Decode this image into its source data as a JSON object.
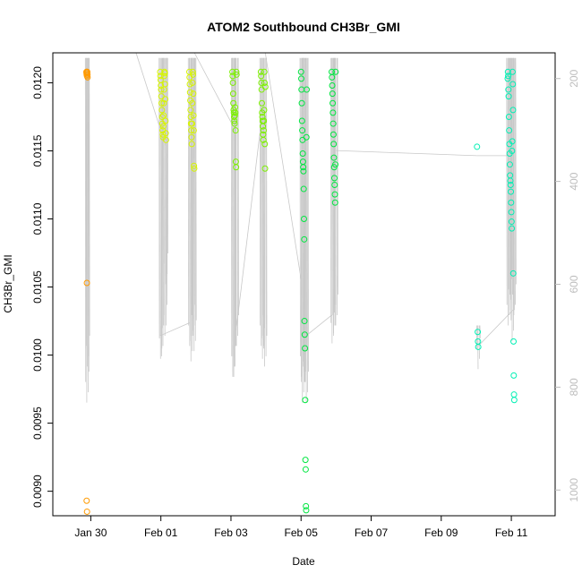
{
  "chart_data": {
    "type": "scatter",
    "title": "ATOM2 Southbound CH3Br_GMI",
    "xlabel": "Date",
    "ylabel": "CH3Br_GMI",
    "xlim": [
      "2017-01-28T22:00",
      "2017-02-12T06:00"
    ],
    "ylim": [
      0.00882,
      0.01222
    ],
    "y2lim": [
      1050,
      150
    ],
    "x_ticks": [
      {
        "label": "Jan 30",
        "date": "2017-01-30"
      },
      {
        "label": "Feb 01",
        "date": "2017-02-01"
      },
      {
        "label": "Feb 03",
        "date": "2017-02-03"
      },
      {
        "label": "Feb 05",
        "date": "2017-02-05"
      },
      {
        "label": "Feb 07",
        "date": "2017-02-07"
      },
      {
        "label": "Feb 09",
        "date": "2017-02-09"
      },
      {
        "label": "Feb 11",
        "date": "2017-02-11"
      }
    ],
    "y_ticks": [
      {
        "label": "0.0090",
        "value": 0.009
      },
      {
        "label": "0.0095",
        "value": 0.0095
      },
      {
        "label": "0.0100",
        "value": 0.01
      },
      {
        "label": "0.0105",
        "value": 0.0105
      },
      {
        "label": "0.0110",
        "value": 0.011
      },
      {
        "label": "0.0115",
        "value": 0.0115
      },
      {
        "label": "0.0120",
        "value": 0.012
      }
    ],
    "y2_ticks": [
      {
        "label": "200",
        "value": 200
      },
      {
        "label": "400",
        "value": 400
      },
      {
        "label": "600",
        "value": 600
      },
      {
        "label": "800",
        "value": 800
      },
      {
        "label": "1000",
        "value": 1000
      }
    ],
    "pressure_trace_color": "#c8c8c8",
    "flights": [
      {
        "color": "#ff9a00",
        "hours": [
          45.0,
          46.0
        ],
        "profiles": [
          {
            "t": 45.0,
            "p_top": 160,
            "p_bottom": 830
          },
          {
            "t": 45.6,
            "p_top": 160,
            "p_bottom": 720
          }
        ],
        "points": [
          {
            "x": "2017-01-29T21:00",
            "y": 0.01208
          },
          {
            "x": "2017-01-29T21:06",
            "y": 0.01207
          },
          {
            "x": "2017-01-29T21:12",
            "y": 0.01206
          },
          {
            "x": "2017-01-29T21:18",
            "y": 0.01208
          },
          {
            "x": "2017-01-29T21:24",
            "y": 0.01205
          },
          {
            "x": "2017-01-29T21:30",
            "y": 0.01207
          },
          {
            "x": "2017-01-29T21:36",
            "y": 0.01208
          },
          {
            "x": "2017-01-29T21:42",
            "y": 0.01206
          },
          {
            "x": "2017-01-29T21:48",
            "y": 0.01204
          },
          {
            "x": "2017-01-29T21:20",
            "y": 0.01053
          },
          {
            "x": "2017-01-29T21:10",
            "y": 0.00893
          },
          {
            "x": "2017-01-29T21:25",
            "y": 0.00885
          }
        ]
      },
      {
        "color": "#d7f500",
        "hours": [],
        "points": [
          {
            "x": "2017-01-31T23:30",
            "y": 0.01208
          },
          {
            "x": "2017-01-31T23:40",
            "y": 0.01205
          },
          {
            "x": "2017-01-31T23:50",
            "y": 0.01202
          },
          {
            "x": "2017-02-01T00:00",
            "y": 0.01198
          },
          {
            "x": "2017-02-01T00:10",
            "y": 0.01195
          },
          {
            "x": "2017-02-01T00:20",
            "y": 0.0119
          },
          {
            "x": "2017-02-01T00:30",
            "y": 0.01185
          },
          {
            "x": "2017-02-01T00:40",
            "y": 0.0118
          },
          {
            "x": "2017-02-01T00:50",
            "y": 0.01175
          },
          {
            "x": "2017-02-01T01:00",
            "y": 0.0117
          },
          {
            "x": "2017-02-01T01:10",
            "y": 0.01165
          },
          {
            "x": "2017-02-01T01:20",
            "y": 0.01162
          },
          {
            "x": "2017-02-01T01:30",
            "y": 0.0116
          },
          {
            "x": "2017-02-01T01:40",
            "y": 0.01168
          },
          {
            "x": "2017-02-01T01:50",
            "y": 0.01176
          },
          {
            "x": "2017-02-01T02:00",
            "y": 0.01185
          },
          {
            "x": "2017-02-01T02:10",
            "y": 0.01195
          },
          {
            "x": "2017-02-01T02:20",
            "y": 0.01205
          },
          {
            "x": "2017-02-01T02:30",
            "y": 0.01208
          },
          {
            "x": "2017-02-01T02:40",
            "y": 0.01207
          },
          {
            "x": "2017-02-01T02:50",
            "y": 0.01199
          },
          {
            "x": "2017-02-01T03:00",
            "y": 0.01188
          },
          {
            "x": "2017-02-01T03:10",
            "y": 0.01172
          },
          {
            "x": "2017-02-01T03:20",
            "y": 0.01163
          },
          {
            "x": "2017-02-01T03:30",
            "y": 0.01158
          },
          {
            "x": "2017-02-01T19:30",
            "y": 0.01208
          },
          {
            "x": "2017-02-01T19:40",
            "y": 0.01204
          },
          {
            "x": "2017-02-01T19:50",
            "y": 0.01199
          },
          {
            "x": "2017-02-01T20:00",
            "y": 0.01193
          },
          {
            "x": "2017-02-01T20:10",
            "y": 0.01187
          },
          {
            "x": "2017-02-01T20:20",
            "y": 0.0118
          },
          {
            "x": "2017-02-01T20:30",
            "y": 0.01175
          },
          {
            "x": "2017-02-01T20:40",
            "y": 0.0117
          },
          {
            "x": "2017-02-01T20:50",
            "y": 0.01165
          },
          {
            "x": "2017-02-01T21:00",
            "y": 0.0116
          },
          {
            "x": "2017-02-01T21:10",
            "y": 0.01155
          },
          {
            "x": "2017-02-01T21:20",
            "y": 0.0117
          },
          {
            "x": "2017-02-01T21:30",
            "y": 0.01185
          },
          {
            "x": "2017-02-01T21:40",
            "y": 0.012
          },
          {
            "x": "2017-02-01T21:50",
            "y": 0.01208
          },
          {
            "x": "2017-02-01T22:00",
            "y": 0.01206
          },
          {
            "x": "2017-02-01T22:10",
            "y": 0.01192
          },
          {
            "x": "2017-02-01T22:20",
            "y": 0.01176
          },
          {
            "x": "2017-02-01T22:30",
            "y": 0.01165
          },
          {
            "x": "2017-02-01T22:40",
            "y": 0.01139
          },
          {
            "x": "2017-02-01T22:50",
            "y": 0.01137
          }
        ]
      },
      {
        "color": "#7cf000",
        "hours": [],
        "points": [
          {
            "x": "2017-02-03T01:00",
            "y": 0.01208
          },
          {
            "x": "2017-02-03T01:10",
            "y": 0.01205
          },
          {
            "x": "2017-02-03T01:20",
            "y": 0.012
          },
          {
            "x": "2017-02-03T01:30",
            "y": 0.01192
          },
          {
            "x": "2017-02-03T01:40",
            "y": 0.01185
          },
          {
            "x": "2017-02-03T01:50",
            "y": 0.0118
          },
          {
            "x": "2017-02-03T02:00",
            "y": 0.01178
          },
          {
            "x": "2017-02-03T02:10",
            "y": 0.01175
          },
          {
            "x": "2017-02-03T02:20",
            "y": 0.01172
          },
          {
            "x": "2017-02-03T02:30",
            "y": 0.0117
          },
          {
            "x": "2017-02-03T02:40",
            "y": 0.01176
          },
          {
            "x": "2017-02-03T02:50",
            "y": 0.01182
          },
          {
            "x": "2017-02-03T03:00",
            "y": 0.01178
          },
          {
            "x": "2017-02-03T03:10",
            "y": 0.01165
          },
          {
            "x": "2017-02-03T03:20",
            "y": 0.01142
          },
          {
            "x": "2017-02-03T03:30",
            "y": 0.01138
          },
          {
            "x": "2017-02-03T03:40",
            "y": 0.01208
          },
          {
            "x": "2017-02-03T03:50",
            "y": 0.01206
          },
          {
            "x": "2017-02-03T20:30",
            "y": 0.01208
          },
          {
            "x": "2017-02-03T20:40",
            "y": 0.01205
          },
          {
            "x": "2017-02-03T20:50",
            "y": 0.012
          },
          {
            "x": "2017-02-03T21:00",
            "y": 0.01195
          },
          {
            "x": "2017-02-03T21:10",
            "y": 0.01185
          },
          {
            "x": "2017-02-03T21:20",
            "y": 0.01178
          },
          {
            "x": "2017-02-03T21:30",
            "y": 0.01175
          },
          {
            "x": "2017-02-03T21:40",
            "y": 0.01172
          },
          {
            "x": "2017-02-03T21:50",
            "y": 0.01168
          },
          {
            "x": "2017-02-03T22:00",
            "y": 0.01162
          },
          {
            "x": "2017-02-03T22:10",
            "y": 0.01158
          },
          {
            "x": "2017-02-03T22:20",
            "y": 0.01165
          },
          {
            "x": "2017-02-03T22:30",
            "y": 0.01172
          },
          {
            "x": "2017-02-03T22:40",
            "y": 0.0118
          },
          {
            "x": "2017-02-03T22:50",
            "y": 0.01208
          },
          {
            "x": "2017-02-03T23:00",
            "y": 0.012
          },
          {
            "x": "2017-02-03T23:10",
            "y": 0.01155
          },
          {
            "x": "2017-02-03T23:20",
            "y": 0.01137
          },
          {
            "x": "2017-02-03T23:30",
            "y": 0.01197
          }
        ]
      },
      {
        "color": "#00e640",
        "hours": [],
        "points": [
          {
            "x": "2017-02-05T00:00",
            "y": 0.01208
          },
          {
            "x": "2017-02-05T00:10",
            "y": 0.01203
          },
          {
            "x": "2017-02-05T00:20",
            "y": 0.01195
          },
          {
            "x": "2017-02-05T00:30",
            "y": 0.01185
          },
          {
            "x": "2017-02-05T00:40",
            "y": 0.01172
          },
          {
            "x": "2017-02-05T00:50",
            "y": 0.01165
          },
          {
            "x": "2017-02-05T01:00",
            "y": 0.01158
          },
          {
            "x": "2017-02-05T01:10",
            "y": 0.01148
          },
          {
            "x": "2017-02-05T01:20",
            "y": 0.01142
          },
          {
            "x": "2017-02-05T01:30",
            "y": 0.01138
          },
          {
            "x": "2017-02-05T01:40",
            "y": 0.01135
          },
          {
            "x": "2017-02-05T01:50",
            "y": 0.01122
          },
          {
            "x": "2017-02-05T02:00",
            "y": 0.011
          },
          {
            "x": "2017-02-05T02:10",
            "y": 0.01085
          },
          {
            "x": "2017-02-05T02:20",
            "y": 0.01025
          },
          {
            "x": "2017-02-05T02:30",
            "y": 0.01015
          },
          {
            "x": "2017-02-05T02:40",
            "y": 0.01005
          },
          {
            "x": "2017-02-05T02:50",
            "y": 0.00967
          },
          {
            "x": "2017-02-05T03:00",
            "y": 0.00923
          },
          {
            "x": "2017-02-05T03:10",
            "y": 0.00916
          },
          {
            "x": "2017-02-05T03:20",
            "y": 0.00889
          },
          {
            "x": "2017-02-05T03:30",
            "y": 0.00886
          },
          {
            "x": "2017-02-05T03:40",
            "y": 0.0116
          },
          {
            "x": "2017-02-05T03:50",
            "y": 0.01195
          },
          {
            "x": "2017-02-05T21:00",
            "y": 0.01208
          },
          {
            "x": "2017-02-05T21:10",
            "y": 0.01204
          },
          {
            "x": "2017-02-05T21:20",
            "y": 0.01198
          },
          {
            "x": "2017-02-05T21:30",
            "y": 0.01192
          },
          {
            "x": "2017-02-05T21:40",
            "y": 0.01185
          },
          {
            "x": "2017-02-05T21:50",
            "y": 0.01178
          },
          {
            "x": "2017-02-05T22:00",
            "y": 0.0117
          },
          {
            "x": "2017-02-05T22:10",
            "y": 0.01162
          },
          {
            "x": "2017-02-05T22:20",
            "y": 0.01155
          },
          {
            "x": "2017-02-05T22:30",
            "y": 0.01145
          },
          {
            "x": "2017-02-05T22:40",
            "y": 0.01138
          },
          {
            "x": "2017-02-05T22:50",
            "y": 0.0113
          },
          {
            "x": "2017-02-05T23:00",
            "y": 0.01125
          },
          {
            "x": "2017-02-05T23:10",
            "y": 0.01118
          },
          {
            "x": "2017-02-05T23:20",
            "y": 0.01112
          },
          {
            "x": "2017-02-05T23:30",
            "y": 0.0114
          },
          {
            "x": "2017-02-05T23:40",
            "y": 0.01208
          }
        ]
      },
      {
        "color": "#00f0b4",
        "hours": [],
        "points": [
          {
            "x": "2017-02-10T00:30",
            "y": 0.01153
          },
          {
            "x": "2017-02-10T01:00",
            "y": 0.01017
          },
          {
            "x": "2017-02-10T01:10",
            "y": 0.0101
          },
          {
            "x": "2017-02-10T01:20",
            "y": 0.01006
          },
          {
            "x": "2017-02-10T21:30",
            "y": 0.01203
          },
          {
            "x": "2017-02-10T21:40",
            "y": 0.01208
          },
          {
            "x": "2017-02-10T21:50",
            "y": 0.01205
          },
          {
            "x": "2017-02-10T22:00",
            "y": 0.01195
          },
          {
            "x": "2017-02-10T22:10",
            "y": 0.0119
          },
          {
            "x": "2017-02-10T22:20",
            "y": 0.01175
          },
          {
            "x": "2017-02-10T22:30",
            "y": 0.01165
          },
          {
            "x": "2017-02-10T22:40",
            "y": 0.01155
          },
          {
            "x": "2017-02-10T22:50",
            "y": 0.01148
          },
          {
            "x": "2017-02-10T23:00",
            "y": 0.0114
          },
          {
            "x": "2017-02-10T23:10",
            "y": 0.01132
          },
          {
            "x": "2017-02-10T23:20",
            "y": 0.01128
          },
          {
            "x": "2017-02-10T23:30",
            "y": 0.01125
          },
          {
            "x": "2017-02-10T23:40",
            "y": 0.0112
          },
          {
            "x": "2017-02-10T23:50",
            "y": 0.01112
          },
          {
            "x": "2017-02-11T00:00",
            "y": 0.01105
          },
          {
            "x": "2017-02-11T00:10",
            "y": 0.01098
          },
          {
            "x": "2017-02-11T00:20",
            "y": 0.01093
          },
          {
            "x": "2017-02-11T00:30",
            "y": 0.0115
          },
          {
            "x": "2017-02-11T00:40",
            "y": 0.01157
          },
          {
            "x": "2017-02-11T00:50",
            "y": 0.01208
          },
          {
            "x": "2017-02-11T01:00",
            "y": 0.01199
          },
          {
            "x": "2017-02-11T01:10",
            "y": 0.0118
          },
          {
            "x": "2017-02-11T01:20",
            "y": 0.0106
          },
          {
            "x": "2017-02-11T01:30",
            "y": 0.0101
          },
          {
            "x": "2017-02-11T01:40",
            "y": 0.00985
          },
          {
            "x": "2017-02-11T01:50",
            "y": 0.00971
          },
          {
            "x": "2017-02-11T02:00",
            "y": 0.00967
          }
        ]
      }
    ]
  }
}
